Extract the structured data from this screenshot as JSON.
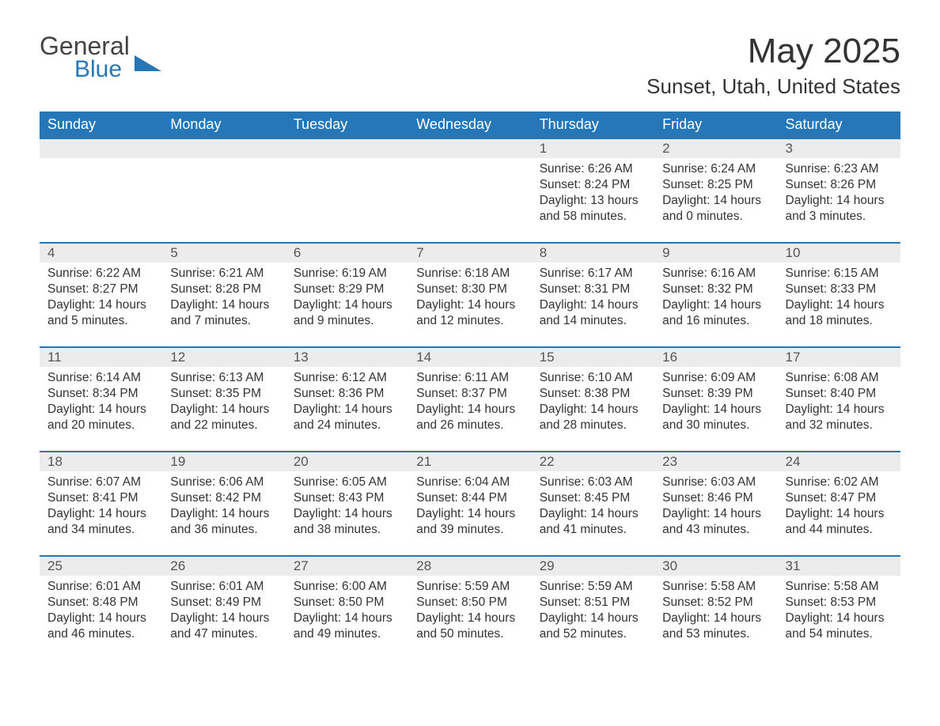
{
  "logo": {
    "line1": "General",
    "line2": "Blue"
  },
  "title": "May 2025",
  "location": "Sunset, Utah, United States",
  "colors": {
    "header_bg": "#2577b8",
    "header_text": "#ffffff",
    "daynum_bg": "#ececec",
    "daynum_border": "#2577b8",
    "body_text": "#333333",
    "background": "#ffffff"
  },
  "typography": {
    "title_fontsize": 44,
    "location_fontsize": 26,
    "header_fontsize": 18,
    "daynum_fontsize": 17,
    "body_fontsize": 15.5
  },
  "layout": {
    "columns": 7,
    "rows": 5,
    "start_day_index": 4
  },
  "weekdays": [
    "Sunday",
    "Monday",
    "Tuesday",
    "Wednesday",
    "Thursday",
    "Friday",
    "Saturday"
  ],
  "days": [
    {
      "n": 1,
      "sunrise": "6:26 AM",
      "sunset": "8:24 PM",
      "daylight": "13 hours and 58 minutes."
    },
    {
      "n": 2,
      "sunrise": "6:24 AM",
      "sunset": "8:25 PM",
      "daylight": "14 hours and 0 minutes."
    },
    {
      "n": 3,
      "sunrise": "6:23 AM",
      "sunset": "8:26 PM",
      "daylight": "14 hours and 3 minutes."
    },
    {
      "n": 4,
      "sunrise": "6:22 AM",
      "sunset": "8:27 PM",
      "daylight": "14 hours and 5 minutes."
    },
    {
      "n": 5,
      "sunrise": "6:21 AM",
      "sunset": "8:28 PM",
      "daylight": "14 hours and 7 minutes."
    },
    {
      "n": 6,
      "sunrise": "6:19 AM",
      "sunset": "8:29 PM",
      "daylight": "14 hours and 9 minutes."
    },
    {
      "n": 7,
      "sunrise": "6:18 AM",
      "sunset": "8:30 PM",
      "daylight": "14 hours and 12 minutes."
    },
    {
      "n": 8,
      "sunrise": "6:17 AM",
      "sunset": "8:31 PM",
      "daylight": "14 hours and 14 minutes."
    },
    {
      "n": 9,
      "sunrise": "6:16 AM",
      "sunset": "8:32 PM",
      "daylight": "14 hours and 16 minutes."
    },
    {
      "n": 10,
      "sunrise": "6:15 AM",
      "sunset": "8:33 PM",
      "daylight": "14 hours and 18 minutes."
    },
    {
      "n": 11,
      "sunrise": "6:14 AM",
      "sunset": "8:34 PM",
      "daylight": "14 hours and 20 minutes."
    },
    {
      "n": 12,
      "sunrise": "6:13 AM",
      "sunset": "8:35 PM",
      "daylight": "14 hours and 22 minutes."
    },
    {
      "n": 13,
      "sunrise": "6:12 AM",
      "sunset": "8:36 PM",
      "daylight": "14 hours and 24 minutes."
    },
    {
      "n": 14,
      "sunrise": "6:11 AM",
      "sunset": "8:37 PM",
      "daylight": "14 hours and 26 minutes."
    },
    {
      "n": 15,
      "sunrise": "6:10 AM",
      "sunset": "8:38 PM",
      "daylight": "14 hours and 28 minutes."
    },
    {
      "n": 16,
      "sunrise": "6:09 AM",
      "sunset": "8:39 PM",
      "daylight": "14 hours and 30 minutes."
    },
    {
      "n": 17,
      "sunrise": "6:08 AM",
      "sunset": "8:40 PM",
      "daylight": "14 hours and 32 minutes."
    },
    {
      "n": 18,
      "sunrise": "6:07 AM",
      "sunset": "8:41 PM",
      "daylight": "14 hours and 34 minutes."
    },
    {
      "n": 19,
      "sunrise": "6:06 AM",
      "sunset": "8:42 PM",
      "daylight": "14 hours and 36 minutes."
    },
    {
      "n": 20,
      "sunrise": "6:05 AM",
      "sunset": "8:43 PM",
      "daylight": "14 hours and 38 minutes."
    },
    {
      "n": 21,
      "sunrise": "6:04 AM",
      "sunset": "8:44 PM",
      "daylight": "14 hours and 39 minutes."
    },
    {
      "n": 22,
      "sunrise": "6:03 AM",
      "sunset": "8:45 PM",
      "daylight": "14 hours and 41 minutes."
    },
    {
      "n": 23,
      "sunrise": "6:03 AM",
      "sunset": "8:46 PM",
      "daylight": "14 hours and 43 minutes."
    },
    {
      "n": 24,
      "sunrise": "6:02 AM",
      "sunset": "8:47 PM",
      "daylight": "14 hours and 44 minutes."
    },
    {
      "n": 25,
      "sunrise": "6:01 AM",
      "sunset": "8:48 PM",
      "daylight": "14 hours and 46 minutes."
    },
    {
      "n": 26,
      "sunrise": "6:01 AM",
      "sunset": "8:49 PM",
      "daylight": "14 hours and 47 minutes."
    },
    {
      "n": 27,
      "sunrise": "6:00 AM",
      "sunset": "8:50 PM",
      "daylight": "14 hours and 49 minutes."
    },
    {
      "n": 28,
      "sunrise": "5:59 AM",
      "sunset": "8:50 PM",
      "daylight": "14 hours and 50 minutes."
    },
    {
      "n": 29,
      "sunrise": "5:59 AM",
      "sunset": "8:51 PM",
      "daylight": "14 hours and 52 minutes."
    },
    {
      "n": 30,
      "sunrise": "5:58 AM",
      "sunset": "8:52 PM",
      "daylight": "14 hours and 53 minutes."
    },
    {
      "n": 31,
      "sunrise": "5:58 AM",
      "sunset": "8:53 PM",
      "daylight": "14 hours and 54 minutes."
    }
  ],
  "labels": {
    "sunrise": "Sunrise:",
    "sunset": "Sunset:",
    "daylight": "Daylight:"
  }
}
